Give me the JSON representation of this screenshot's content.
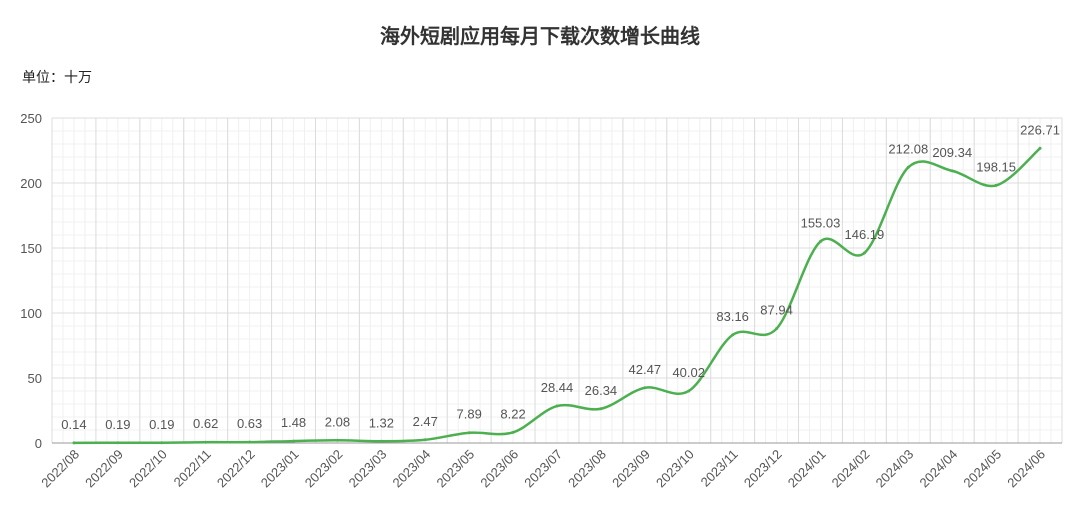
{
  "title": "海外短剧应用每月下载次数增长曲线",
  "unit": "单位：十万",
  "colors": {
    "line": "#4caf50",
    "grid_major": "#dcdcdc",
    "grid_minor": "#f0f0f0",
    "axis": "#999999"
  },
  "chart_data": {
    "type": "line",
    "title": "海外短剧应用每月下载次数增长曲线",
    "xlabel": "",
    "ylabel": "单位：十万",
    "ylim": [
      0,
      250
    ],
    "yticks": [
      0,
      50,
      100,
      150,
      200,
      250
    ],
    "grid": true,
    "legend": "none",
    "categories": [
      "2022/08",
      "2022/09",
      "2022/10",
      "2022/11",
      "2022/12",
      "2023/01",
      "2023/02",
      "2023/03",
      "2023/04",
      "2023/05",
      "2023/06",
      "2023/07",
      "2023/08",
      "2023/09",
      "2023/10",
      "2023/11",
      "2023/12",
      "2024/01",
      "2024/02",
      "2024/03",
      "2024/04",
      "2024/05",
      "2024/06"
    ],
    "series": [
      {
        "values": [
          0.14,
          0.19,
          0.19,
          0.62,
          0.63,
          1.48,
          2.08,
          1.32,
          2.47,
          7.89,
          8.22,
          28.44,
          26.34,
          42.47,
          40.02,
          83.16,
          87.94,
          155.03,
          146.19,
          212.08,
          209.34,
          198.15,
          226.71
        ]
      }
    ]
  }
}
